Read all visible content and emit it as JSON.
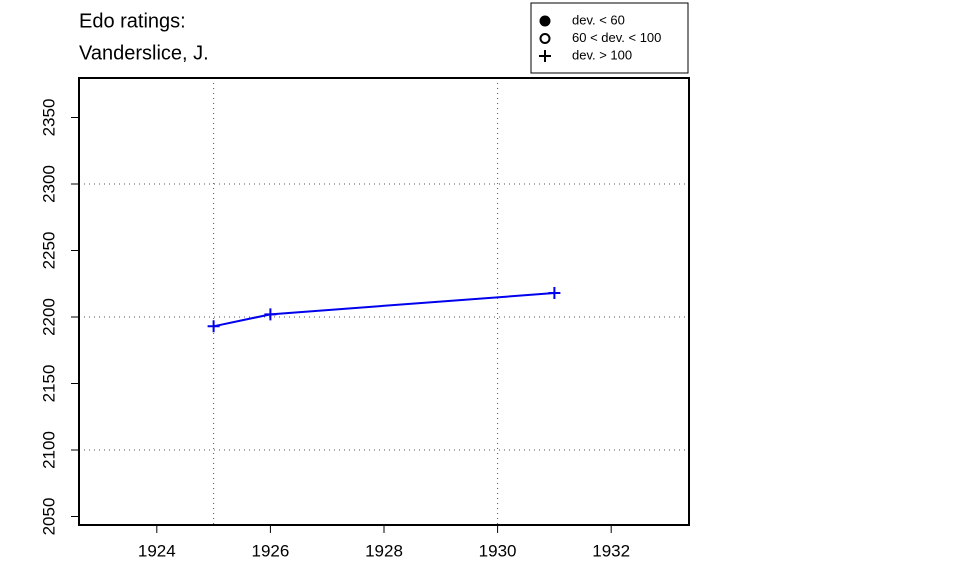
{
  "chart_data": {
    "type": "line",
    "title": [
      "Edo ratings:",
      "Vanderslice, J."
    ],
    "x": [
      1925,
      1926,
      1931
    ],
    "series": [
      {
        "name": "Vanderslice, J.",
        "color": "#0000ee",
        "marker": "plus",
        "values": [
          2193,
          2202,
          2218
        ]
      }
    ],
    "xlim": [
      1922.63,
      1933.37
    ],
    "ylim": [
      2043.6,
      2379.7
    ],
    "xticks": [
      1924,
      1926,
      1928,
      1930,
      1932
    ],
    "yticks": [
      2050,
      2100,
      2150,
      2200,
      2250,
      2300,
      2350
    ],
    "xgrid": [
      1925,
      1930
    ],
    "ygrid": [
      2100,
      2200,
      2300
    ],
    "legend": [
      {
        "label": "dev. < 60",
        "symbol": "filled-circle"
      },
      {
        "label": "60 < dev. < 100",
        "symbol": "open-circle"
      },
      {
        "label": "dev. > 100",
        "symbol": "plus"
      }
    ],
    "legend_position": "top-right"
  }
}
